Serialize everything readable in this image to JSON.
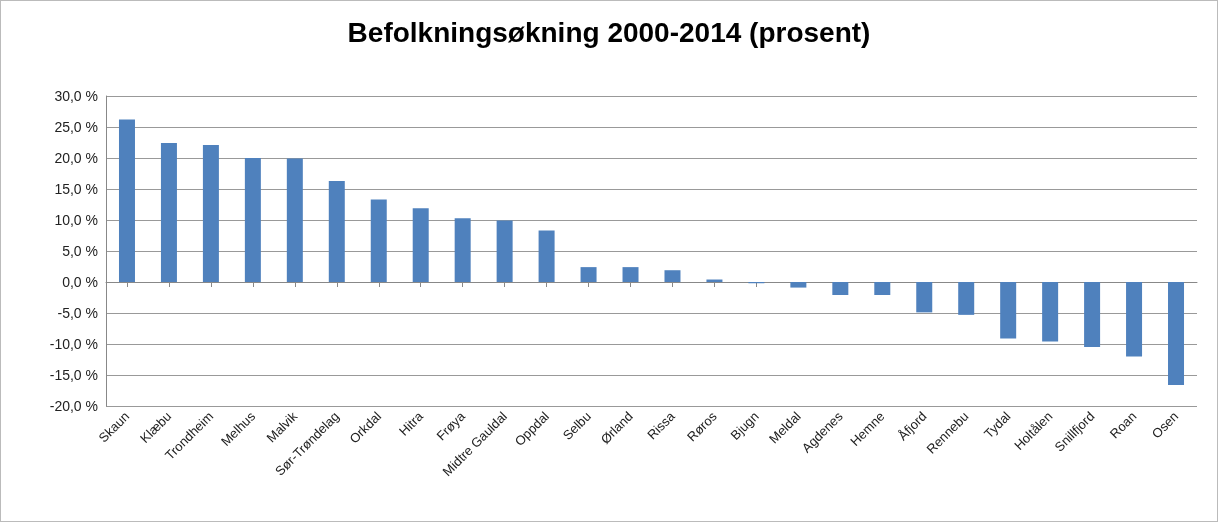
{
  "chart_data": {
    "type": "bar",
    "title": "Befolkningsøkning 2000-2014 (prosent)",
    "categories": [
      "Skaun",
      "Klæbu",
      "Trondheim",
      "Melhus",
      "Malvik",
      "Sør-Trøndelag",
      "Orkdal",
      "Hitra",
      "Frøya",
      "Midtre Gauldal",
      "Oppdal",
      "Selbu",
      "Ørland",
      "Rissa",
      "Røros",
      "Bjugn",
      "Meldal",
      "Agdenes",
      "Hemne",
      "Åfjord",
      "Rennebu",
      "Tydal",
      "Holtålen",
      "Snillfjord",
      "Roan",
      "Osen"
    ],
    "values": [
      26.2,
      22.4,
      22.1,
      20.0,
      19.9,
      16.3,
      13.3,
      11.9,
      10.3,
      9.9,
      8.3,
      2.4,
      2.4,
      1.9,
      0.4,
      -0.2,
      -0.9,
      -2.1,
      -2.1,
      -4.9,
      -5.3,
      -9.1,
      -9.6,
      -10.5,
      -12.0,
      -16.6
    ],
    "color": "#4f81bd",
    "ylim": [
      -20,
      30
    ],
    "yticks": [
      {
        "value": -20,
        "label": "-20,0 %"
      },
      {
        "value": -15,
        "label": "-15,0 %"
      },
      {
        "value": -10,
        "label": "-10,0 %"
      },
      {
        "value": -5,
        "label": "-5,0 %"
      },
      {
        "value": 0,
        "label": "0,0 %"
      },
      {
        "value": 5,
        "label": "5,0 %"
      },
      {
        "value": 10,
        "label": "10,0 %"
      },
      {
        "value": 15,
        "label": "15,0 %"
      },
      {
        "value": 20,
        "label": "20,0 %"
      },
      {
        "value": 25,
        "label": "25,0 %"
      },
      {
        "value": 30,
        "label": "30,0 %"
      }
    ],
    "grid": "y"
  }
}
